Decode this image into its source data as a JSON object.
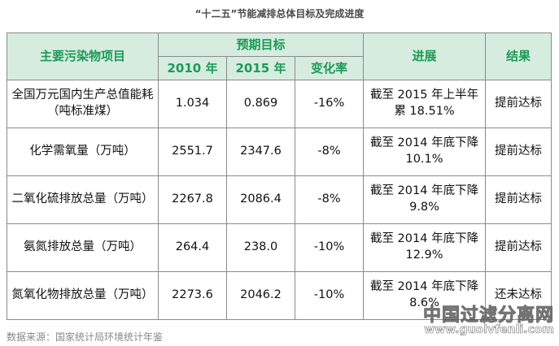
{
  "title": "“十二五”节能减排总体目标及完成进度",
  "table": {
    "headers": {
      "item": "主要污染物项目",
      "target_group": "预期目标",
      "year_2010": "2010 年",
      "year_2015": "2015 年",
      "change_rate": "变化率",
      "progress": "进展",
      "result": "结果"
    },
    "rows": [
      {
        "item": "全国万元国内生产总值能耗（吨标准煤）",
        "v2010": "1.034",
        "v2015": "0.869",
        "change": "-16%",
        "progress": "截至 2015 年上半年累 18.51%",
        "result": "提前达标"
      },
      {
        "item": "化学需氧量（万吨）",
        "v2010": "2551.7",
        "v2015": "2347.6",
        "change": "-8%",
        "progress": "截至 2014 年底下降 10.1%",
        "result": "提前达标"
      },
      {
        "item": "二氧化硫排放总量（万吨）",
        "v2010": "2267.8",
        "v2015": "2086.4",
        "change": "-8%",
        "progress": "截至 2014 年底下降 9.8%",
        "result": "提前达标"
      },
      {
        "item": "氨氮排放总量（万吨）",
        "v2010": "264.4",
        "v2015": "238.0",
        "change": "-10%",
        "progress": "截至 2014 年底下降 12.9%",
        "result": "提前达标"
      },
      {
        "item": "氮氧化物排放总量（万吨）",
        "v2010": "2273.6",
        "v2015": "2046.2",
        "change": "-10%",
        "progress": "截至 2014 年底下降 8.6%",
        "result": "还未达标"
      }
    ]
  },
  "footer": "数据来源：国家统计局环境统计年鉴",
  "watermark": {
    "text": "中国过滤分离网",
    "url": "www.guolvfenli.com"
  },
  "colors": {
    "header_bg": "#d6ecdf",
    "header_text": "#1c9a57",
    "border": "#8a8a8a"
  }
}
